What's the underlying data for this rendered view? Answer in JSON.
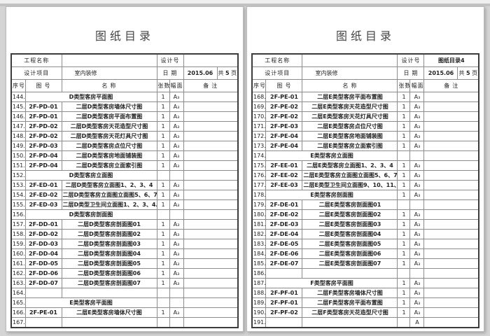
{
  "pages": [
    {
      "title": "图纸目录",
      "info": {
        "project_label": "工程名称",
        "project_value": "",
        "design_no_label": "设计号",
        "design_no_value": "",
        "design_item_label": "设计项目",
        "design_item_value": "室内装修",
        "date_label": "日 期",
        "date_value": "2015.06",
        "pages_prefix": "共",
        "pages_count": "5",
        "pages_suffix": "页"
      },
      "columns": {
        "no": "序号",
        "code": "图 号",
        "name": "名  称",
        "qty": "张数",
        "fmt": "幅面",
        "remark": "备  注"
      },
      "rows": [
        {
          "no": "144.",
          "code": "D类型客房平面图",
          "header": true,
          "name": "",
          "qty": "1",
          "fmt": "A₃"
        },
        {
          "no": "145.",
          "code": "2F-PD-01",
          "name": "二层D类型客房墙体尺寸图",
          "qty": "1",
          "fmt": "A₃"
        },
        {
          "no": "146.",
          "code": "2F-PD-01",
          "name": "二层D类型客房平面布置图",
          "qty": "1",
          "fmt": "A₃"
        },
        {
          "no": "147.",
          "code": "2F-PD-02",
          "name": "二层D类型客房天花造型尺寸图",
          "qty": "1",
          "fmt": "A₃"
        },
        {
          "no": "148.",
          "code": "2F-PD-02",
          "name": "二层D类型客房天花灯具尺寸图",
          "qty": "1",
          "fmt": "A₃"
        },
        {
          "no": "149.",
          "code": "2F-PD-03",
          "name": "二层D类型客房点位尺寸图",
          "qty": "1",
          "fmt": "A₃"
        },
        {
          "no": "150.",
          "code": "2F-PD-04",
          "name": "二层D类型客房地面铺装图",
          "qty": "1",
          "fmt": "A₃"
        },
        {
          "no": "151.",
          "code": "2F-PD-04",
          "name": "二层D类型客房立面索引图",
          "qty": "1",
          "fmt": "A₃"
        },
        {
          "no": "152.",
          "code": "D类型客房立面图",
          "header": true,
          "name": "",
          "qty": "",
          "fmt": ""
        },
        {
          "no": "153.",
          "code": "2F-ED-01",
          "name": "二层D类型客房立面图1、2、3、4",
          "qty": "1",
          "fmt": "A₃"
        },
        {
          "no": "154.",
          "code": "2F-ED-02",
          "name": "二层D类型客房立面图立面图5、6、7、8",
          "qty": "1",
          "fmt": "A₃"
        },
        {
          "no": "155.",
          "code": "2F-ED-03",
          "name": "二层D类型卫生间立面图1、2、3、4、5",
          "qty": "1",
          "fmt": "A₃"
        },
        {
          "no": "156.",
          "code": "D类型客房剖面图",
          "header": true,
          "name": "",
          "qty": "",
          "fmt": ""
        },
        {
          "no": "157.",
          "code": "2F-DD-01",
          "name": "二层D类型客房剖面图01",
          "qty": "1",
          "fmt": "A₃"
        },
        {
          "no": "158.",
          "code": "2F-DD-02",
          "name": "二层D类型客房剖面图02",
          "qty": "1",
          "fmt": "A₃"
        },
        {
          "no": "159.",
          "code": "2F-DD-03",
          "name": "二层D类型客房剖面图03",
          "qty": "1",
          "fmt": "A₃"
        },
        {
          "no": "160.",
          "code": "2F-DD-04",
          "name": "二层D类型客房剖面图04",
          "qty": "1",
          "fmt": "A₃"
        },
        {
          "no": "161.",
          "code": "2F-DD-05",
          "name": "二层D类型客房剖面图05",
          "qty": "1",
          "fmt": "A₃"
        },
        {
          "no": "162.",
          "code": "2F-DD-06",
          "name": "二层D类型客房剖面图06",
          "qty": "1",
          "fmt": "A₃"
        },
        {
          "no": "163.",
          "code": "2F-DD-07",
          "name": "二层D类型客房剖面图07",
          "qty": "1",
          "fmt": "A₃"
        },
        {
          "no": "164.",
          "code": "",
          "name": "",
          "qty": "",
          "fmt": ""
        },
        {
          "no": "165.",
          "code": "E类型客房平面图",
          "header": true,
          "name": "",
          "qty": "",
          "fmt": ""
        },
        {
          "no": "166.",
          "code": "2F-PE-01",
          "name": "二层E类型客房墙体尺寸图",
          "qty": "1",
          "fmt": "A₃"
        },
        {
          "no": "167.",
          "code": "",
          "name": "",
          "qty": "",
          "fmt": ""
        }
      ]
    },
    {
      "title": "图纸目录",
      "info": {
        "project_label": "工程名称",
        "project_value": "",
        "design_no_label": "设计号",
        "design_no_value": "图纸目录4",
        "design_item_label": "设计项目",
        "design_item_value": "室内装修",
        "date_label": "日 期",
        "date_value": "2015.06",
        "pages_prefix": "共",
        "pages_count": "5",
        "pages_suffix": "页"
      },
      "columns": {
        "no": "序号",
        "code": "图 号",
        "name": "名  称",
        "qty": "张数",
        "fmt": "幅面",
        "remark": "备  注"
      },
      "rows": [
        {
          "no": "168.",
          "code": "2F-PE-01",
          "name": "二层E类型客房平面布置图",
          "qty": "1",
          "fmt": "A₃"
        },
        {
          "no": "169.",
          "code": "2F-PE-02",
          "name": "二层E类型客房天花造型尺寸图",
          "qty": "1",
          "fmt": "A₃"
        },
        {
          "no": "170.",
          "code": "2F-PE-02",
          "name": "二层E类型客房天花灯具尺寸图",
          "qty": "1",
          "fmt": "A₃"
        },
        {
          "no": "171.",
          "code": "2F-PE-03",
          "name": "二层E类型客房点位尺寸图",
          "qty": "1",
          "fmt": "A₃"
        },
        {
          "no": "172.",
          "code": "2F-PE-04",
          "name": "二层E类型客房地面铺装图",
          "qty": "1",
          "fmt": "A₃"
        },
        {
          "no": "173.",
          "code": "2F-PE-04",
          "name": "二层E类型客房立面索引图",
          "qty": "1",
          "fmt": "A₃"
        },
        {
          "no": "174.",
          "code": "E类型客房立面图",
          "header": true,
          "name": "",
          "qty": "",
          "fmt": ""
        },
        {
          "no": "175.",
          "code": "2F-EE-01",
          "name": "二层E类型客房立面图1、2、3、4",
          "qty": "1",
          "fmt": "A₃"
        },
        {
          "no": "176.",
          "code": "2F-EE-02",
          "name": "二层E类型客房立面图立面图5、6、7、8",
          "qty": "1",
          "fmt": "A₃"
        },
        {
          "no": "177.",
          "code": "2F-EE-03",
          "name": "二层E类型卫生间立面图9、10、11、12、13",
          "qty": "1",
          "fmt": "A₃"
        },
        {
          "no": "178.",
          "code": "E类型客房剖面图",
          "header": true,
          "name": "",
          "qty": "1",
          "fmt": "A₃"
        },
        {
          "no": "179.",
          "code": "2F-DE-01",
          "name": "二层E类型客房剖面图01",
          "qty": "",
          "fmt": ""
        },
        {
          "no": "180.",
          "code": "2F-DE-02",
          "name": "二层E类型客房剖面图02",
          "qty": "1",
          "fmt": "A₃"
        },
        {
          "no": "181.",
          "code": "2F-DE-03",
          "name": "二层E类型客房剖面图03",
          "qty": "1",
          "fmt": "A₃"
        },
        {
          "no": "182.",
          "code": "2F-DE-04",
          "name": "二层E类型客房剖面图04",
          "qty": "1",
          "fmt": "A₃"
        },
        {
          "no": "183.",
          "code": "2F-DE-05",
          "name": "二层E类型客房剖面图05",
          "qty": "1",
          "fmt": "A₃"
        },
        {
          "no": "184.",
          "code": "2F-DE-06",
          "name": "二层E类型客房剖面图06",
          "qty": "1",
          "fmt": "A₃"
        },
        {
          "no": "185.",
          "code": "2F-DE-07",
          "name": "二层E类型客房剖面图07",
          "qty": "1",
          "fmt": "A₃"
        },
        {
          "no": "186.",
          "code": "",
          "name": "",
          "qty": "",
          "fmt": ""
        },
        {
          "no": "187.",
          "code": "F类型客房平面图",
          "header": true,
          "name": "",
          "qty": "1",
          "fmt": "A₃"
        },
        {
          "no": "188.",
          "code": "2F-PF-01",
          "name": "二层F类型客房墙体尺寸图",
          "qty": "1",
          "fmt": "A₃"
        },
        {
          "no": "189.",
          "code": "2F-PF-01",
          "name": "二层F类型客房平面布置图",
          "qty": "1",
          "fmt": "A₃"
        },
        {
          "no": "190.",
          "code": "2F-PF-02",
          "name": "二层F类型客房天花造型尺寸图",
          "qty": "1",
          "fmt": "A₃"
        },
        {
          "no": "191.",
          "code": "",
          "name": "",
          "qty": "",
          "fmt": "A"
        }
      ]
    }
  ]
}
